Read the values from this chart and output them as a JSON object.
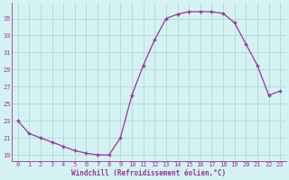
{
  "x": [
    0,
    1,
    2,
    3,
    4,
    5,
    6,
    7,
    8,
    9,
    10,
    11,
    12,
    13,
    14,
    15,
    16,
    17,
    18,
    19,
    20,
    21,
    22,
    23
  ],
  "y": [
    23,
    21.5,
    21,
    20.5,
    20,
    19.5,
    19.2,
    19.0,
    19.0,
    21,
    26,
    29.5,
    32.5,
    35,
    35.5,
    35.8,
    35.8,
    35.8,
    35.6,
    34.5,
    32,
    29.5,
    26,
    26.5
  ],
  "line_color": "#993399",
  "marker": "+",
  "marker_size": 3.5,
  "marker_lw": 1.0,
  "line_width": 0.9,
  "background_color": "#d5f2f2",
  "grid_color": "#aadada",
  "xlabel": "Windchill (Refroidissement éolien,°C)",
  "xlabel_color": "#993399",
  "xlabel_fontsize": 5.5,
  "ytick_values": [
    19,
    21,
    23,
    25,
    27,
    29,
    31,
    33,
    35
  ],
  "ytick_labels": [
    "19",
    "21",
    "23",
    "25",
    "27",
    "29",
    "31",
    "33",
    "35"
  ],
  "xtick_labels": [
    "0",
    "1",
    "2",
    "3",
    "4",
    "5",
    "6",
    "7",
    "8",
    "9",
    "10",
    "11",
    "12",
    "13",
    "14",
    "15",
    "16",
    "17",
    "18",
    "19",
    "20",
    "21",
    "22",
    "23"
  ],
  "ylim": [
    18.3,
    36.8
  ],
  "xlim": [
    -0.5,
    23.5
  ],
  "tick_fontsize": 5.0,
  "tick_color": "#993399",
  "spine_color": "#993399"
}
